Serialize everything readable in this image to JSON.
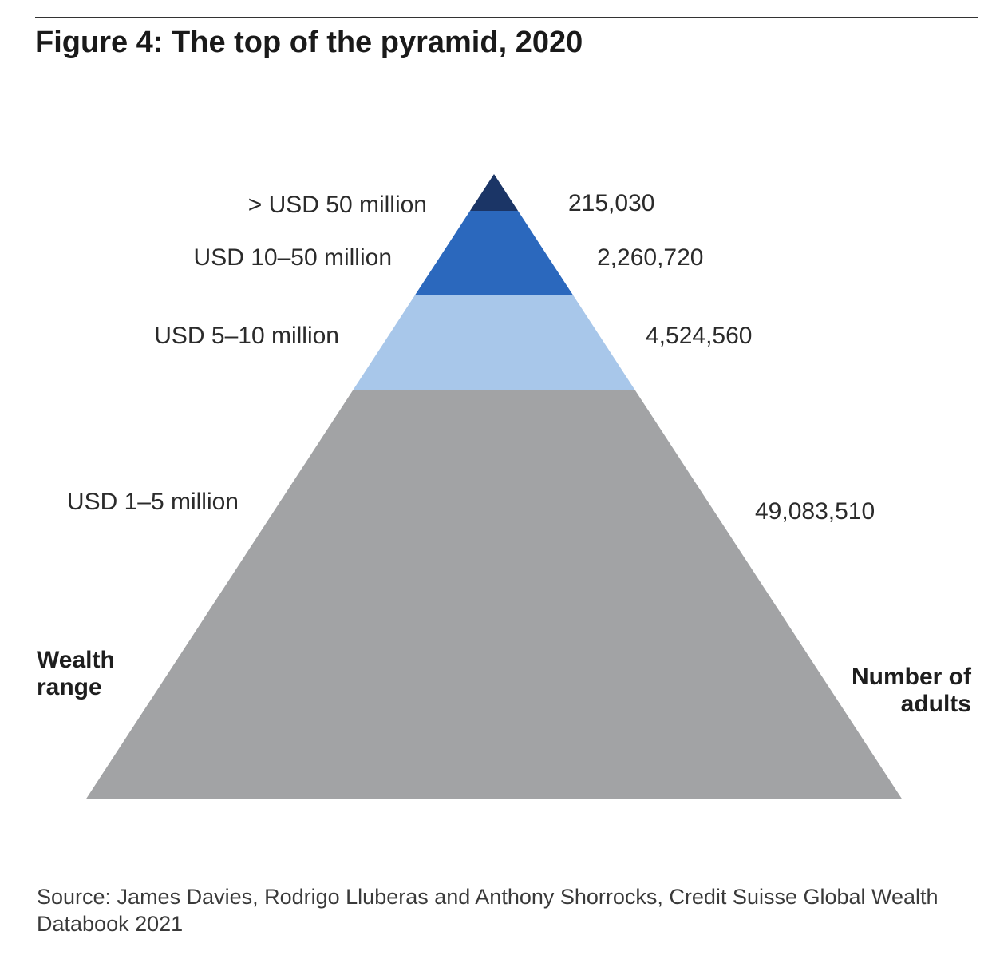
{
  "title": "Figure 4: The top of the pyramid, 2020",
  "source": "Source: James Davies, Rodrigo Lluberas and Anthony Shorrocks, Credit Suisse Global Wealth Databook 2021",
  "chart_data": {
    "type": "pyramid",
    "title": "Figure 4: The top of the pyramid, 2020",
    "left_axis_label": [
      "Wealth",
      "range"
    ],
    "right_axis_label": [
      "Number of",
      "adults"
    ],
    "tiers": [
      {
        "range": "> USD 50 million",
        "adults": 215030,
        "adults_label": "215,030",
        "color": "#1b3566"
      },
      {
        "range": "USD 10–50 million",
        "adults": 2260720,
        "adults_label": "2,260,720",
        "color": "#2b68bd"
      },
      {
        "range": "USD 5–10 million",
        "adults": 4524560,
        "adults_label": "4,524,560",
        "color": "#a8c7ea"
      },
      {
        "range": "USD 1–5 million",
        "adults": 49083510,
        "adults_label": "49,083,510",
        "color": "#a2a3a5"
      }
    ]
  }
}
